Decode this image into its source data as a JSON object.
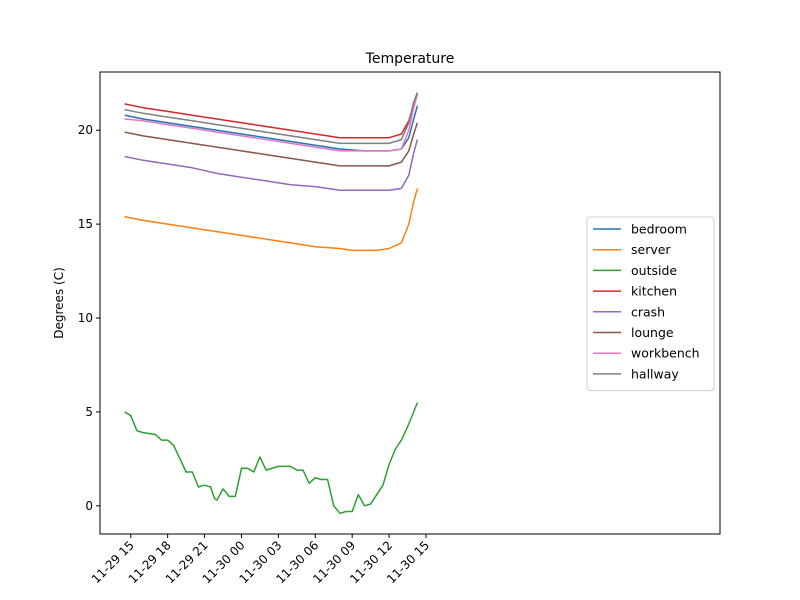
{
  "chart_data": {
    "type": "line",
    "title": "Temperature",
    "xlabel": "",
    "ylabel": "Degrees (C)",
    "ylim": [
      -1.5,
      23.1
    ],
    "xlim_hours": [
      -1.5,
      48.9
    ],
    "x_reference": "2023-11-29 14:00",
    "yticks": [
      0,
      5,
      10,
      15,
      20
    ],
    "xticks": [
      {
        "hour": 1,
        "label": "11-29 15"
      },
      {
        "hour": 4,
        "label": "11-29 18"
      },
      {
        "hour": 7,
        "label": "11-29 21"
      },
      {
        "hour": 10,
        "label": "11-30 00"
      },
      {
        "hour": 13,
        "label": "11-30 03"
      },
      {
        "hour": 16,
        "label": "11-30 06"
      },
      {
        "hour": 19,
        "label": "11-30 09"
      },
      {
        "hour": 22,
        "label": "11-30 12"
      },
      {
        "hour": 25,
        "label": "11-30 15"
      }
    ],
    "legend_position": "center-right",
    "series": [
      {
        "name": "bedroom",
        "color": "#1f77b4",
        "x": [
          0.5,
          2,
          4,
          6,
          8,
          10,
          12,
          14,
          16,
          18,
          20,
          22,
          23,
          23.6,
          24,
          24.3
        ],
        "values": [
          20.8,
          20.6,
          20.4,
          20.2,
          20.0,
          19.8,
          19.6,
          19.4,
          19.2,
          19.0,
          18.9,
          18.9,
          19.0,
          19.6,
          20.6,
          21.3
        ]
      },
      {
        "name": "server",
        "color": "#ff7f0e",
        "x": [
          0.5,
          2,
          4,
          6,
          8,
          10,
          12,
          14,
          16,
          18,
          19,
          21,
          22,
          23,
          23.6,
          24,
          24.3
        ],
        "values": [
          15.4,
          15.2,
          15.0,
          14.8,
          14.6,
          14.4,
          14.2,
          14.0,
          13.8,
          13.7,
          13.6,
          13.6,
          13.7,
          14.0,
          15.0,
          16.2,
          16.9
        ]
      },
      {
        "name": "outside",
        "color": "#2ca02c",
        "x": [
          0.5,
          1,
          1.5,
          2,
          3,
          3.5,
          4,
          4.5,
          5,
          5.5,
          6,
          6.5,
          7,
          7.5,
          7.8,
          8,
          8.5,
          9,
          9.5,
          10,
          10.5,
          11,
          11.5,
          12,
          13,
          14,
          14.5,
          15,
          15.5,
          16,
          16.5,
          17,
          17.5,
          18,
          18.5,
          19,
          19.5,
          20,
          20.5,
          21,
          21.5,
          22,
          22.5,
          23,
          23.5,
          24,
          24.3
        ],
        "values": [
          5.0,
          4.8,
          4.0,
          3.9,
          3.8,
          3.5,
          3.5,
          3.2,
          2.5,
          1.8,
          1.8,
          1.0,
          1.1,
          1.0,
          0.4,
          0.3,
          0.9,
          0.5,
          0.5,
          2.0,
          2.0,
          1.8,
          2.6,
          1.9,
          2.1,
          2.1,
          1.9,
          1.9,
          1.2,
          1.5,
          1.4,
          1.4,
          0.0,
          -0.4,
          -0.3,
          -0.3,
          0.6,
          0.0,
          0.1,
          0.6,
          1.1,
          2.2,
          3.0,
          3.5,
          4.2,
          5.0,
          5.5
        ]
      },
      {
        "name": "kitchen",
        "color": "#d62728",
        "x": [
          0.5,
          2,
          4,
          6,
          8,
          10,
          12,
          14,
          16,
          18,
          20,
          22,
          23,
          23.6,
          24,
          24.3
        ],
        "values": [
          21.4,
          21.2,
          21.0,
          20.8,
          20.6,
          20.4,
          20.2,
          20.0,
          19.8,
          19.6,
          19.6,
          19.6,
          19.8,
          20.5,
          21.4,
          22.0
        ]
      },
      {
        "name": "crash",
        "color": "#9467bd",
        "x": [
          0.5,
          2,
          4,
          6,
          8,
          10,
          12,
          14,
          16,
          18,
          20,
          22,
          23,
          23.6,
          24,
          24.3
        ],
        "values": [
          18.6,
          18.4,
          18.2,
          18.0,
          17.7,
          17.5,
          17.3,
          17.1,
          17.0,
          16.8,
          16.8,
          16.8,
          16.9,
          17.6,
          18.8,
          19.5
        ]
      },
      {
        "name": "lounge",
        "color": "#8c564b",
        "x": [
          0.5,
          2,
          4,
          6,
          8,
          10,
          12,
          14,
          16,
          18,
          20,
          22,
          23,
          23.6,
          24,
          24.3
        ],
        "values": [
          19.9,
          19.7,
          19.5,
          19.3,
          19.1,
          18.9,
          18.7,
          18.5,
          18.3,
          18.1,
          18.1,
          18.1,
          18.3,
          18.9,
          19.8,
          20.4
        ]
      },
      {
        "name": "workbench",
        "color": "#e377c2",
        "x": [
          0.5,
          2,
          4,
          6,
          8,
          10,
          12,
          14,
          16,
          18,
          20,
          22,
          23,
          23.6,
          24,
          24.3
        ],
        "values": [
          20.6,
          20.5,
          20.3,
          20.1,
          19.9,
          19.7,
          19.5,
          19.3,
          19.1,
          18.9,
          18.9,
          18.9,
          19.0,
          20.0,
          21.2,
          21.9
        ]
      },
      {
        "name": "hallway",
        "color": "#7f7f7f",
        "x": [
          0.5,
          2,
          4,
          6,
          8,
          10,
          12,
          14,
          16,
          18,
          20,
          22,
          23,
          23.6,
          24,
          24.3
        ],
        "values": [
          21.1,
          20.9,
          20.7,
          20.5,
          20.3,
          20.1,
          19.9,
          19.7,
          19.5,
          19.3,
          19.3,
          19.3,
          19.5,
          20.4,
          21.5,
          22.0
        ]
      }
    ]
  }
}
